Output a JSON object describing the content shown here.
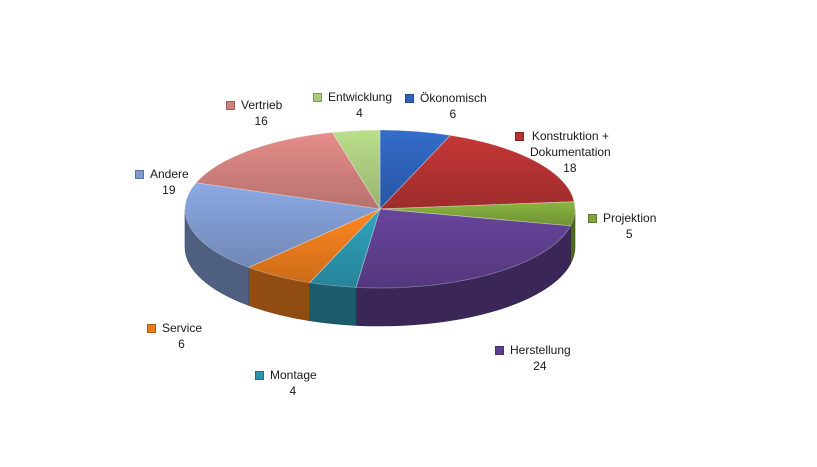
{
  "chart_data": {
    "type": "pie",
    "series": [
      {
        "values": [
          6,
          18,
          5,
          24,
          4,
          6,
          19,
          16,
          4
        ],
        "categories": [
          "Ökonomisch",
          "Konstruktion + Dokumentation",
          "Projektion",
          "Herstellung",
          "Montage",
          "Service",
          "Andere",
          "Vertrieb",
          "Entwicklung"
        ]
      }
    ],
    "slices": [
      {
        "label": "Ökonomisch",
        "value": 6,
        "color": "#2E62B8"
      },
      {
        "label": "Konstruktion +\nDokumentation",
        "value": 18,
        "color": "#B33232"
      },
      {
        "label": "Projektion",
        "value": 5,
        "color": "#7EA53B"
      },
      {
        "label": "Herstellung",
        "value": 24,
        "color": "#5E3F8E"
      },
      {
        "label": "Montage",
        "value": 4,
        "color": "#2C95AE"
      },
      {
        "label": "Service",
        "value": 6,
        "color": "#E97B1C"
      },
      {
        "label": "Andere",
        "value": 19,
        "color": "#7F9ACF"
      },
      {
        "label": "Vertrieb",
        "value": 16,
        "color": "#D0807D"
      },
      {
        "label": "Entwicklung",
        "value": 4,
        "color": "#AACB7E"
      }
    ],
    "legend_placement": "callouts around pie",
    "grid": false,
    "three_d": true
  }
}
